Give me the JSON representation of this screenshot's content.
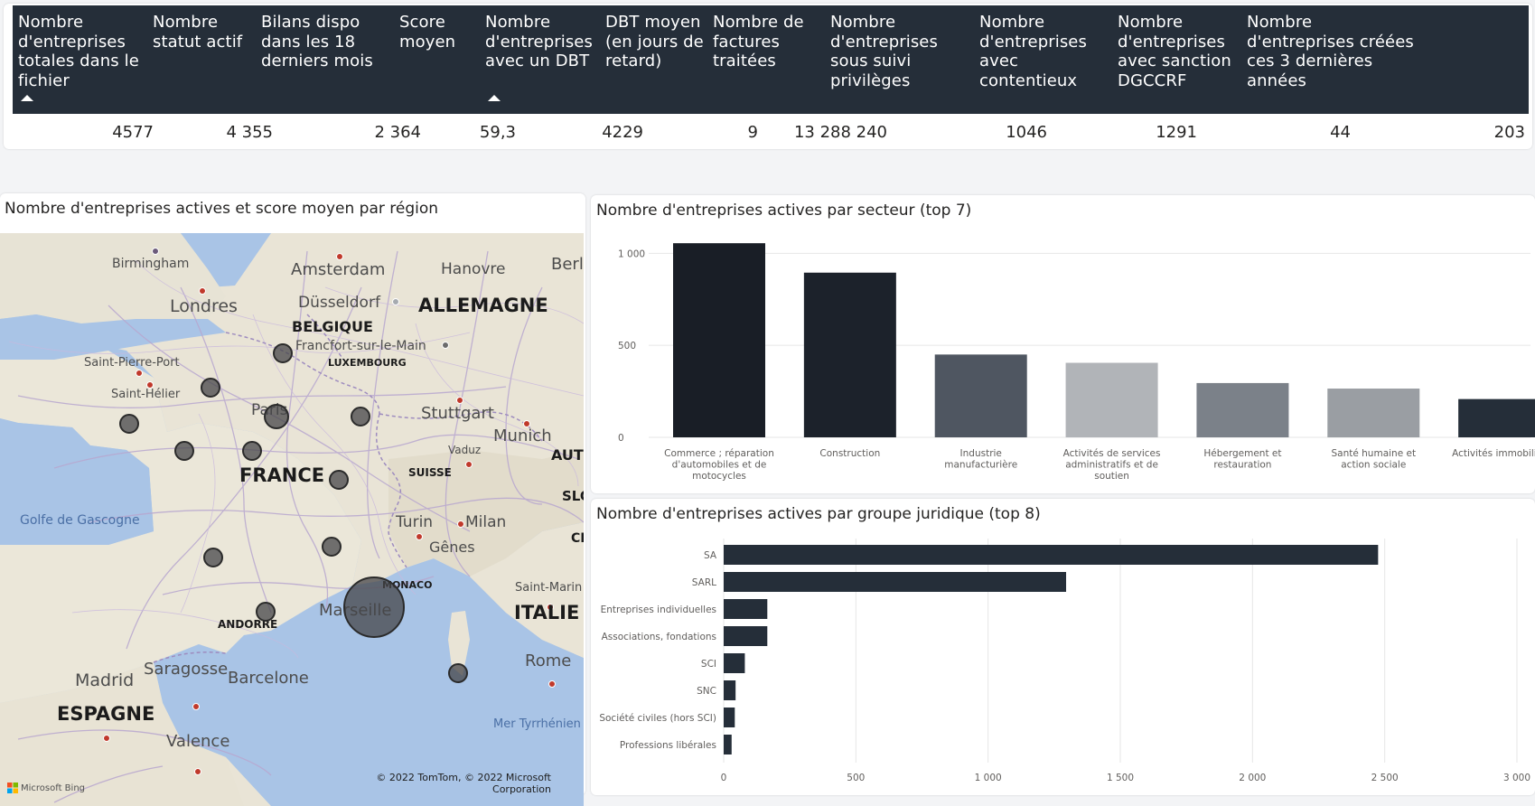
{
  "kpi_table": {
    "headers": [
      "Nombre d'entreprises totales dans le fichier",
      "Nombre statut actif",
      "Bilans dispo dans les 18 derniers mois",
      "Score moyen",
      "Nombre d'entreprises avec un DBT",
      "DBT moyen (en jours de retard)",
      "Nombre de factures traitées",
      "Nombre d'entreprises sous suivi privilèges",
      "Nombre d'entreprises avec contentieux",
      "Nombre d'entreprises avec sanction DGCCRF",
      "Nombre d'entreprises créées ces 3 dernières années"
    ],
    "values": [
      "4577",
      "4 355",
      "2 364",
      "59,3",
      "4229",
      "9",
      "13 288 240",
      "1046",
      "1291",
      "44",
      "203"
    ]
  },
  "map_visual": {
    "title": "Nombre d'entreprises actives et score moyen par région",
    "labels": {
      "birmingham": "Birmingham",
      "amsterdam": "Amsterdam",
      "hanovre": "Hanovre",
      "berlin": "Berl",
      "londres": "Londres",
      "dusseldorf": "Düsseldorf",
      "allemagne": "ALLEMAGNE",
      "belgique": "BELGIQUE",
      "francfort": "Francfort-sur-le-Main",
      "luxembourg": "LUXEMBOURG",
      "saint_pierre_port": "Saint-Pierre-Port",
      "saint_helier": "Saint-Hélier",
      "paris": "Paris",
      "stuttgart": "Stuttgart",
      "munich": "Munich",
      "vaduz": "Vaduz",
      "aut": "AUT",
      "france": "FRANCE",
      "suisse": "SUISSE",
      "slo": "SLO",
      "golfe": "Golfe de Gascogne",
      "turin": "Turin",
      "milan": "Milan",
      "ci": "CI",
      "genes": "Gênes",
      "monaco": "MONACO",
      "saint_marin": "Saint-Marin",
      "marseille": "Marseille",
      "italie": "ITALIE",
      "andorre": "ANDORRE",
      "madrid": "Madrid",
      "saragosse": "Saragosse",
      "barcelone": "Barcelone",
      "rome": "Rome",
      "espagne": "ESPAGNE",
      "mer_tyrrhenienne": "Mer Tyrrhénien",
      "valence": "Valence"
    },
    "bing_logo": "Microsoft Bing",
    "copyright_line1": "© 2022 TomTom, © 2022 Microsoft",
    "copyright_line2": "Corporation"
  },
  "sector_chart": {
    "title": "Nombre d'entreprises actives par secteur (top 7)"
  },
  "legal_chart": {
    "title": "Nombre d'entreprises actives par groupe juridique (top 8)"
  },
  "chart_data": [
    {
      "type": "bar",
      "title": "Nombre d'entreprises actives par secteur (top 7)",
      "categories": [
        "Commerce ; réparation d'automobiles et de motocycles",
        "Construction",
        "Industrie manufacturière",
        "Activités de services administratifs et de soutien",
        "Hébergement et restauration",
        "Santé humaine et action sociale",
        "Activités immobilières"
      ],
      "category_lines": [
        [
          "Commerce ; réparation",
          "d'automobiles et de",
          "motocycles"
        ],
        [
          "Construction"
        ],
        [
          "Industrie",
          "manufacturière"
        ],
        [
          "Activités de services",
          "administratifs et de",
          "soutien"
        ],
        [
          "Hébergement et",
          "restauration"
        ],
        [
          "Santé humaine et",
          "action sociale"
        ],
        [
          "Activités immobilières"
        ]
      ],
      "values": [
        1055,
        895,
        450,
        405,
        295,
        265,
        208
      ],
      "colors": [
        "#191e26",
        "#1c222b",
        "#4f5661",
        "#b1b4b8",
        "#7b8189",
        "#9a9ea3",
        "#252e39"
      ],
      "yticks": [
        0,
        500,
        1000
      ],
      "ytick_labels": [
        "0",
        "500",
        "1 000"
      ],
      "ylim": [
        0,
        1100
      ],
      "grid": true
    },
    {
      "type": "bar",
      "orientation": "horizontal",
      "title": "Nombre d'entreprises actives par groupe juridique (top 8)",
      "categories": [
        "SA",
        "SARL",
        "Entreprises individuelles",
        "Associations, fondations",
        "SCI",
        "SNC",
        "Société civiles (hors SCI)",
        "Professions libérales"
      ],
      "values": [
        2475,
        1295,
        165,
        165,
        80,
        45,
        42,
        30
      ],
      "color": "#252e39",
      "xticks": [
        0,
        500,
        1000,
        1500,
        2000,
        2500,
        3000
      ],
      "xtick_labels": [
        "0",
        "500",
        "1 000",
        "1 500",
        "2 000",
        "2 500",
        "3 000"
      ],
      "xlim": [
        0,
        3000
      ],
      "grid": true
    }
  ]
}
